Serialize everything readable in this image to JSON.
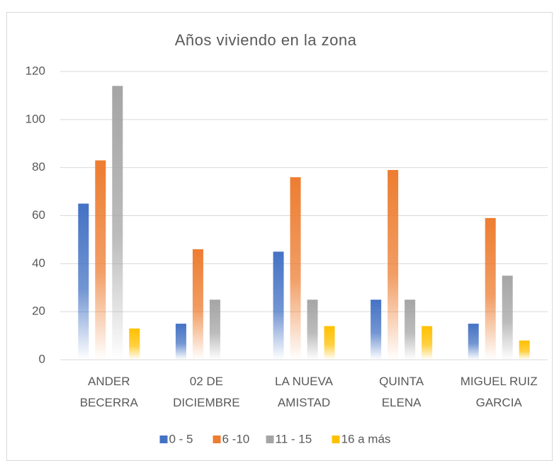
{
  "chart_data": {
    "type": "bar",
    "title": "Años viviendo en la zona",
    "categories": [
      "ANDER\nBECERRA",
      "02 DE\nDICIEMBRE",
      "LA NUEVA\nAMISTAD",
      "QUINTA\nELENA",
      "MIGUEL RUIZ\nGARCIA"
    ],
    "series": [
      {
        "name": "0 - 5",
        "color": "#4472c4",
        "values": [
          65,
          15,
          45,
          25,
          15
        ]
      },
      {
        "name": "6 -10",
        "color": "#ed7d31",
        "values": [
          83,
          46,
          76,
          79,
          59
        ]
      },
      {
        "name": "11 - 15",
        "color": "#a5a5a5",
        "values": [
          114,
          25,
          25,
          25,
          35
        ]
      },
      {
        "name": "16 a más",
        "color": "#ffc000",
        "values": [
          13,
          0,
          14,
          14,
          8
        ]
      }
    ],
    "ylim": [
      0,
      120
    ],
    "yticks": [
      0,
      20,
      40,
      60,
      80,
      100,
      120
    ],
    "grid": true,
    "legend": "bottom"
  }
}
